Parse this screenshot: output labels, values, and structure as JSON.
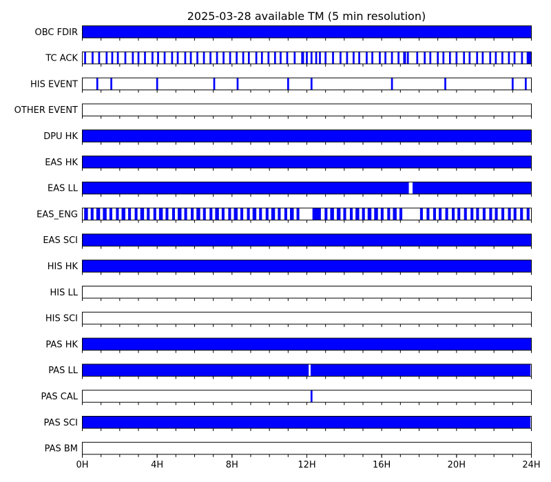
{
  "chart_data": {
    "type": "timeline",
    "title": "2025-03-28 available TM (5 min resolution)",
    "x_unit": "hour",
    "xlim": [
      0,
      24
    ],
    "x_ticks": [
      {
        "value": 0,
        "label": "0H"
      },
      {
        "value": 4,
        "label": "4H"
      },
      {
        "value": 8,
        "label": "8H"
      },
      {
        "value": 12,
        "label": "12H"
      },
      {
        "value": 16,
        "label": "16H"
      },
      {
        "value": 20,
        "label": "20H"
      },
      {
        "value": 24,
        "label": "24H"
      }
    ],
    "fill_color": "#0000ff",
    "rows": [
      {
        "label": "OBC FDIR",
        "available": [
          [
            0,
            24
          ]
        ]
      },
      {
        "label": "TC ACK",
        "available": [
          [
            0.1,
            0.2
          ],
          [
            0.5,
            0.6
          ],
          [
            0.85,
            0.95
          ],
          [
            1.25,
            1.35
          ],
          [
            1.55,
            1.65
          ],
          [
            1.85,
            1.95
          ],
          [
            2.25,
            2.35
          ],
          [
            2.65,
            2.75
          ],
          [
            2.95,
            3.05
          ],
          [
            3.3,
            3.4
          ],
          [
            3.7,
            3.8
          ],
          [
            4.0,
            4.1
          ],
          [
            4.35,
            4.45
          ],
          [
            4.75,
            4.85
          ],
          [
            5.05,
            5.15
          ],
          [
            5.45,
            5.55
          ],
          [
            5.75,
            5.85
          ],
          [
            6.1,
            6.2
          ],
          [
            6.45,
            6.55
          ],
          [
            6.8,
            6.9
          ],
          [
            7.15,
            7.25
          ],
          [
            7.5,
            7.6
          ],
          [
            7.85,
            7.95
          ],
          [
            8.2,
            8.3
          ],
          [
            8.55,
            8.65
          ],
          [
            8.85,
            8.95
          ],
          [
            9.25,
            9.35
          ],
          [
            9.55,
            9.65
          ],
          [
            9.9,
            10.0
          ],
          [
            10.25,
            10.35
          ],
          [
            10.55,
            10.65
          ],
          [
            10.9,
            11.0
          ],
          [
            11.3,
            11.4
          ],
          [
            11.7,
            11.85
          ],
          [
            11.95,
            12.05
          ],
          [
            12.2,
            12.3
          ],
          [
            12.45,
            12.55
          ],
          [
            12.65,
            12.75
          ],
          [
            12.95,
            13.05
          ],
          [
            13.35,
            13.45
          ],
          [
            13.75,
            13.85
          ],
          [
            14.1,
            14.2
          ],
          [
            14.45,
            14.55
          ],
          [
            14.75,
            14.85
          ],
          [
            15.15,
            15.25
          ],
          [
            15.45,
            15.55
          ],
          [
            15.85,
            15.95
          ],
          [
            16.15,
            16.25
          ],
          [
            16.5,
            16.6
          ],
          [
            16.85,
            16.95
          ],
          [
            17.15,
            17.3
          ],
          [
            17.35,
            17.45
          ],
          [
            17.85,
            17.95
          ],
          [
            18.25,
            18.35
          ],
          [
            18.55,
            18.65
          ],
          [
            18.95,
            19.05
          ],
          [
            19.25,
            19.35
          ],
          [
            19.6,
            19.7
          ],
          [
            19.95,
            20.05
          ],
          [
            20.35,
            20.45
          ],
          [
            20.65,
            20.75
          ],
          [
            21.05,
            21.15
          ],
          [
            21.35,
            21.45
          ],
          [
            21.75,
            21.85
          ],
          [
            22.05,
            22.15
          ],
          [
            22.4,
            22.5
          ],
          [
            22.75,
            22.85
          ],
          [
            23.05,
            23.15
          ],
          [
            23.45,
            23.55
          ],
          [
            23.75,
            24.0
          ]
        ]
      },
      {
        "label": "HIS EVENT",
        "available": [
          [
            0.75,
            0.85
          ],
          [
            1.5,
            1.6
          ],
          [
            3.95,
            4.05
          ],
          [
            7.0,
            7.1
          ],
          [
            8.25,
            8.35
          ],
          [
            10.95,
            11.05
          ],
          [
            12.2,
            12.3
          ],
          [
            16.5,
            16.6
          ],
          [
            19.35,
            19.45
          ],
          [
            22.95,
            23.05
          ],
          [
            23.65,
            23.75
          ]
        ]
      },
      {
        "label": "OTHER EVENT",
        "available": []
      },
      {
        "label": "DPU HK",
        "available": [
          [
            0,
            24
          ]
        ]
      },
      {
        "label": "EAS HK",
        "available": [
          [
            0,
            24
          ]
        ]
      },
      {
        "label": "EAS LL",
        "available": [
          [
            0,
            17.45
          ],
          [
            17.65,
            24
          ]
        ]
      },
      {
        "label": "EAS_ENG",
        "available": [
          [
            0.1,
            0.3
          ],
          [
            0.45,
            0.6
          ],
          [
            0.75,
            0.95
          ],
          [
            1.1,
            1.3
          ],
          [
            1.45,
            1.6
          ],
          [
            1.8,
            1.95
          ],
          [
            2.1,
            2.3
          ],
          [
            2.45,
            2.6
          ],
          [
            2.8,
            2.95
          ],
          [
            3.1,
            3.3
          ],
          [
            3.45,
            3.6
          ],
          [
            3.8,
            3.95
          ],
          [
            4.1,
            4.3
          ],
          [
            4.45,
            4.6
          ],
          [
            4.8,
            4.95
          ],
          [
            5.1,
            5.3
          ],
          [
            5.45,
            5.6
          ],
          [
            5.8,
            5.95
          ],
          [
            6.1,
            6.3
          ],
          [
            6.45,
            6.6
          ],
          [
            6.8,
            6.95
          ],
          [
            7.1,
            7.3
          ],
          [
            7.45,
            7.6
          ],
          [
            7.8,
            7.95
          ],
          [
            8.1,
            8.3
          ],
          [
            8.45,
            8.6
          ],
          [
            8.8,
            8.95
          ],
          [
            9.1,
            9.3
          ],
          [
            9.45,
            9.6
          ],
          [
            9.8,
            9.95
          ],
          [
            10.1,
            10.3
          ],
          [
            10.45,
            10.6
          ],
          [
            10.8,
            10.95
          ],
          [
            11.1,
            11.3
          ],
          [
            11.45,
            11.6
          ],
          [
            12.3,
            12.75
          ],
          [
            12.95,
            13.1
          ],
          [
            13.25,
            13.45
          ],
          [
            13.6,
            13.8
          ],
          [
            13.95,
            14.1
          ],
          [
            14.3,
            14.45
          ],
          [
            14.6,
            14.8
          ],
          [
            14.95,
            15.1
          ],
          [
            15.25,
            15.45
          ],
          [
            15.6,
            15.8
          ],
          [
            15.95,
            16.1
          ],
          [
            16.3,
            16.45
          ],
          [
            16.6,
            16.8
          ],
          [
            16.95,
            17.1
          ],
          [
            18.05,
            18.2
          ],
          [
            18.4,
            18.55
          ],
          [
            18.75,
            18.9
          ],
          [
            19.05,
            19.2
          ],
          [
            19.4,
            19.55
          ],
          [
            19.75,
            19.9
          ],
          [
            20.05,
            20.2
          ],
          [
            20.4,
            20.55
          ],
          [
            20.75,
            20.9
          ],
          [
            21.05,
            21.2
          ],
          [
            21.4,
            21.55
          ],
          [
            21.75,
            21.9
          ],
          [
            22.05,
            22.2
          ],
          [
            22.4,
            22.55
          ],
          [
            22.75,
            22.9
          ],
          [
            23.05,
            23.2
          ],
          [
            23.4,
            23.55
          ],
          [
            23.75,
            23.9
          ]
        ]
      },
      {
        "label": "EAS SCI",
        "available": [
          [
            0,
            24
          ]
        ]
      },
      {
        "label": "HIS HK",
        "available": [
          [
            0,
            24
          ]
        ]
      },
      {
        "label": "HIS LL",
        "available": []
      },
      {
        "label": "HIS SCI",
        "available": []
      },
      {
        "label": "PAS HK",
        "available": [
          [
            0,
            24
          ]
        ]
      },
      {
        "label": "PAS LL",
        "available": [
          [
            0,
            12.1
          ],
          [
            12.2,
            23.95
          ]
        ]
      },
      {
        "label": "PAS CAL",
        "available": [
          [
            12.2,
            12.3
          ]
        ]
      },
      {
        "label": "PAS SCI",
        "available": [
          [
            0,
            23.95
          ]
        ]
      },
      {
        "label": "PAS BM",
        "available": []
      }
    ]
  }
}
